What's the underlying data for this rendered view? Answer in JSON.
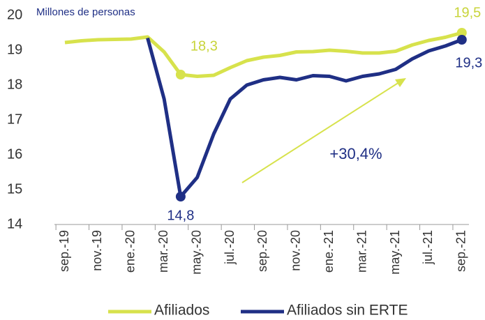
{
  "chart_data": {
    "type": "line",
    "y_label": "Millones de personas",
    "annotation": "+30,4%",
    "categories": [
      "sep.-19",
      null,
      "nov.-19",
      null,
      "ene.-20",
      null,
      "mar.-20",
      null,
      "may.-20",
      null,
      "jul.-20",
      null,
      "sep.-20",
      null,
      "nov.-20",
      null,
      "ene.-21",
      null,
      "mar.-21",
      null,
      "may.-21",
      null,
      "jul.-21",
      null,
      "sep.-21"
    ],
    "series": [
      {
        "name": "Afiliados",
        "color": "#d7e24c",
        "values": [
          19.22,
          19.27,
          19.3,
          19.31,
          19.32,
          19.38,
          18.95,
          18.3,
          18.25,
          18.28,
          18.5,
          18.7,
          18.8,
          18.85,
          18.95,
          18.96,
          19.0,
          18.97,
          18.92,
          18.92,
          18.97,
          19.15,
          19.28,
          19.37,
          19.5
        ],
        "value_labels": [
          null,
          null,
          null,
          null,
          null,
          null,
          null,
          "18,3",
          null,
          null,
          null,
          null,
          null,
          null,
          null,
          null,
          null,
          null,
          null,
          null,
          null,
          null,
          null,
          null,
          "19,5"
        ]
      },
      {
        "name": "Afiliados sin ERTE",
        "color": "#1f2f85",
        "values": [
          null,
          null,
          null,
          null,
          null,
          19.35,
          17.6,
          14.8,
          15.35,
          16.6,
          17.6,
          18.0,
          18.15,
          18.22,
          18.15,
          18.27,
          18.25,
          18.12,
          18.25,
          18.32,
          18.45,
          18.75,
          18.98,
          19.12,
          19.3
        ],
        "value_labels": [
          null,
          null,
          null,
          null,
          null,
          null,
          null,
          "14,8",
          null,
          null,
          null,
          null,
          null,
          null,
          null,
          null,
          null,
          null,
          null,
          null,
          null,
          null,
          null,
          null,
          "19,3"
        ]
      }
    ],
    "ylim": [
      14,
      20
    ],
    "yticks": [
      14,
      15,
      16,
      17,
      18,
      19,
      20
    ],
    "grid": false,
    "legend": "bottom"
  }
}
